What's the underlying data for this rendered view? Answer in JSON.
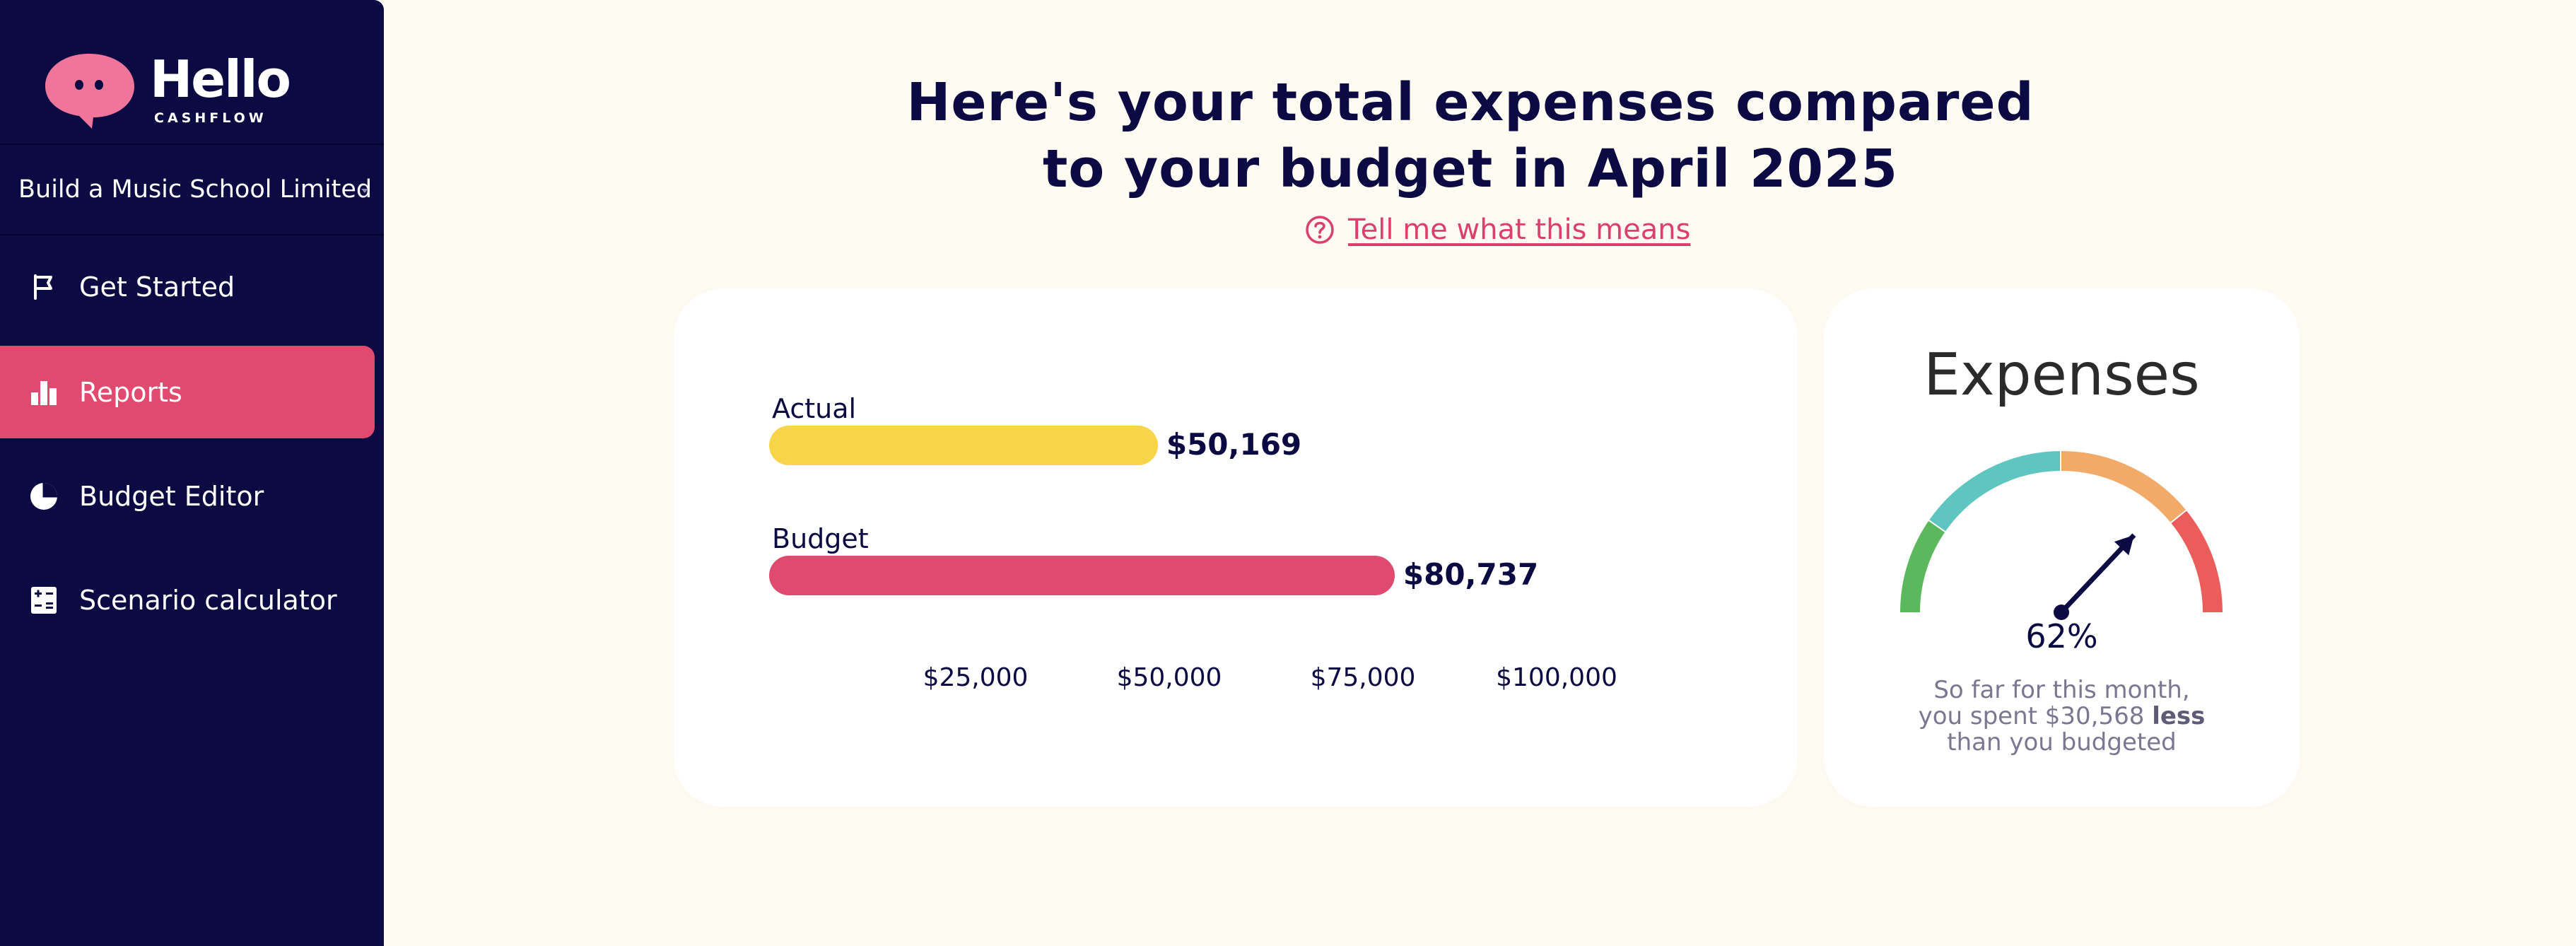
{
  "brand": {
    "name": "Hello",
    "subtitle": "CASHFLOW",
    "logo_icon": "speech-bubble-icon",
    "colors": {
      "pink": "#f0759a",
      "navy": "#0c0a42"
    }
  },
  "sidebar": {
    "organization": "Build a Music School Limited",
    "items": [
      {
        "label": "Get Started",
        "icon": "flag-icon",
        "active": false
      },
      {
        "label": "Reports",
        "icon": "bar-chart-icon",
        "active": true
      },
      {
        "label": "Budget Editor",
        "icon": "pie-chart-icon",
        "active": false
      },
      {
        "label": "Scenario calculator",
        "icon": "calculator-icon",
        "active": false
      }
    ],
    "active_color": "#e04a6e"
  },
  "main": {
    "headline_line1": "Here's your total expenses compared",
    "headline_line2": "to your budget in April 2025",
    "explain_link": "Tell me what this means",
    "explain_icon": "question-circle-icon"
  },
  "chart_data": {
    "type": "bar",
    "orientation": "horizontal",
    "categories": [
      "Actual",
      "Budget"
    ],
    "values": [
      50169,
      80737
    ],
    "value_labels": [
      "$50,169",
      "$80,737"
    ],
    "colors": [
      "#f8d548",
      "#e04a6e"
    ],
    "xticks": [
      25000,
      50000,
      75000,
      100000
    ],
    "xtick_labels": [
      "$25,000",
      "$50,000",
      "$75,000",
      "$100,000"
    ],
    "grid": false
  },
  "gauge": {
    "title": "Expenses",
    "percent": 62,
    "percent_label": "62%",
    "note_line1": "So far for this month,",
    "note_line2_prefix": "you spent $30,568",
    "note_line2_bold": "less",
    "note_line3": "than you budgeted",
    "segment_colors": [
      "#5cb85c",
      "#5fc5c0",
      "#f1aa68",
      "#ea5d5a"
    ]
  }
}
